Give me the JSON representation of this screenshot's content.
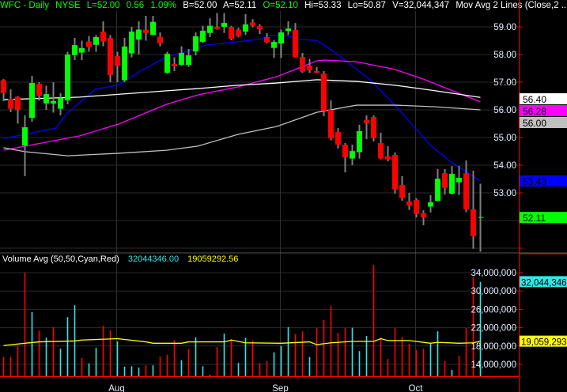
{
  "header": {
    "symbol": "WFC - Daily",
    "exchange": "NYSE",
    "last": "L=52.00",
    "change": "0.56",
    "change_pct": "1.09%",
    "bid": "B=52.00",
    "ask": "A=52.11",
    "open": "O=52.10",
    "high": "Hi=53.33",
    "low": "Lo=50.87",
    "volume": "V=32,044,347",
    "study": "Mov Avg 2 Lines (Close,2 ..."
  },
  "volume_panel": {
    "title": "Volume Avg (50,50,Cyan,Red)",
    "value_volume": "32044346.00",
    "value_avg": "19059292.56",
    "axis_labels": [
      "34,000,000",
      "30,000,000",
      "26,000,000",
      "22,000,000",
      "18,000,000",
      "14,000,000"
    ],
    "axis_values": [
      34,
      30,
      26,
      22,
      18,
      14
    ],
    "tag_volume": "32,044,346",
    "tag_avg": "19,059,293"
  },
  "price_axis": {
    "labels": [
      "59.00",
      "58.00",
      "57.00",
      "56.00",
      "55.00",
      "54.00",
      "53.00"
    ],
    "values": [
      59,
      58,
      57,
      56,
      55,
      54,
      53
    ],
    "tags": [
      {
        "text": "56.40",
        "value": 56.4,
        "bg": "#ffffff",
        "fg": "#000000"
      },
      {
        "text": "56.28",
        "value": 56.28,
        "bg": "#ff00ff",
        "fg": "#000000"
      },
      {
        "text": "56.00",
        "value": 56.0,
        "bg": "#c0c0c0",
        "fg": "#000000"
      },
      {
        "text": "53.43",
        "value": 53.43,
        "bg": "#0000ff",
        "fg": "#000000"
      },
      {
        "text": "52.11",
        "value": 52.11,
        "bg": "#00ff00",
        "fg": "#000000"
      }
    ]
  },
  "time_axis": {
    "labels": [
      {
        "text": "Aug",
        "index": 16
      },
      {
        "text": "Sep",
        "index": 39
      },
      {
        "text": "Oct",
        "index": 58
      }
    ]
  },
  "colors": {
    "up": "#00ff00",
    "down": "#ff0000",
    "wick": "#808080",
    "ma_blue": "#0000ff",
    "ma_magenta": "#ff00ff",
    "ma_white": "#ffffff",
    "ma_gray": "#c0c0c0",
    "vol_up": "#33e6e6",
    "vol_down": "#ff0000",
    "vol_avg": "#ffff00",
    "axis": "#ff0000"
  },
  "chart_data": {
    "type": "candlestick",
    "ohlc": [
      [
        57.07,
        57.11,
        56.31,
        56.61
      ],
      [
        56.4,
        56.74,
        55.92,
        56.04
      ],
      [
        56.47,
        56.5,
        55.5,
        56.0
      ],
      [
        54.71,
        55.8,
        53.6,
        55.37
      ],
      [
        55.71,
        57.23,
        55.57,
        56.97
      ],
      [
        56.94,
        57.0,
        56.33,
        56.51
      ],
      [
        56.23,
        56.87,
        56.0,
        56.57
      ],
      [
        56.23,
        57.0,
        55.9,
        56.32
      ],
      [
        56.04,
        56.6,
        55.8,
        56.43
      ],
      [
        56.35,
        58.1,
        56.2,
        58.0
      ],
      [
        57.98,
        58.6,
        57.8,
        58.34
      ],
      [
        58.07,
        58.5,
        57.8,
        58.23
      ],
      [
        58.47,
        58.67,
        58.1,
        58.27
      ],
      [
        58.35,
        58.7,
        58.1,
        58.63
      ],
      [
        58.83,
        59.2,
        58.3,
        58.47
      ],
      [
        58.6,
        58.7,
        57.0,
        57.26
      ],
      [
        57.94,
        58.1,
        57.0,
        57.6
      ],
      [
        57.07,
        58.6,
        57.0,
        58.29
      ],
      [
        58.04,
        59.0,
        57.9,
        58.83
      ],
      [
        58.54,
        59.2,
        58.0,
        58.9
      ],
      [
        58.9,
        59.4,
        58.5,
        58.78
      ],
      [
        58.71,
        59.4,
        58.7,
        59.18
      ],
      [
        58.64,
        58.8,
        58.3,
        58.4
      ],
      [
        57.34,
        58.1,
        57.3,
        58.03
      ],
      [
        57.66,
        57.9,
        57.4,
        57.58
      ],
      [
        57.63,
        58.3,
        57.6,
        58.06
      ],
      [
        57.63,
        58.2,
        57.55,
        57.97
      ],
      [
        58.11,
        58.8,
        57.97,
        58.66
      ],
      [
        58.46,
        59.04,
        58.42,
        58.86
      ],
      [
        58.78,
        59.31,
        58.63,
        59.04
      ],
      [
        59.0,
        59.5,
        58.9,
        58.92
      ],
      [
        59.0,
        59.5,
        58.78,
        59.14
      ],
      [
        59.0,
        59.04,
        58.52,
        58.57
      ],
      [
        58.9,
        58.97,
        58.62,
        58.66
      ],
      [
        58.83,
        59.46,
        58.71,
        59.09
      ],
      [
        59.16,
        59.28,
        58.98,
        59.04
      ],
      [
        59.03,
        59.1,
        58.74,
        58.92
      ],
      [
        58.63,
        58.77,
        58.4,
        58.44
      ],
      [
        58.24,
        58.53,
        57.88,
        58.46
      ],
      [
        58.4,
        58.9,
        57.88,
        58.8
      ],
      [
        58.85,
        59.2,
        58.7,
        58.94
      ],
      [
        58.89,
        59.14,
        57.89,
        57.9
      ],
      [
        57.91,
        58.06,
        57.34,
        57.38
      ],
      [
        57.6,
        57.84,
        57.33,
        57.43
      ],
      [
        57.4,
        57.55,
        57.33,
        57.35
      ],
      [
        57.31,
        57.4,
        55.77,
        55.97
      ],
      [
        56.0,
        56.34,
        54.9,
        54.97
      ],
      [
        55.2,
        55.34,
        54.6,
        54.74
      ],
      [
        54.74,
        54.8,
        53.74,
        54.29
      ],
      [
        54.24,
        54.74,
        54.0,
        54.51
      ],
      [
        54.47,
        55.46,
        54.24,
        55.23
      ],
      [
        55.64,
        55.8,
        54.94,
        55.52
      ],
      [
        55.74,
        55.8,
        54.86,
        54.97
      ],
      [
        54.8,
        55.17,
        54.21,
        54.24
      ],
      [
        54.32,
        54.69,
        54.14,
        54.21
      ],
      [
        54.37,
        54.46,
        52.97,
        53.14
      ],
      [
        53.29,
        53.6,
        52.71,
        52.81
      ],
      [
        52.69,
        53.0,
        52.38,
        52.54
      ],
      [
        52.74,
        52.8,
        52.11,
        52.24
      ],
      [
        52.26,
        52.37,
        51.83,
        52.11
      ],
      [
        52.5,
        52.92,
        52.29,
        52.66
      ],
      [
        52.71,
        53.86,
        52.69,
        53.51
      ],
      [
        53.71,
        53.86,
        52.94,
        53.18
      ],
      [
        52.97,
        53.97,
        52.94,
        53.69
      ],
      [
        53.38,
        53.97,
        52.92,
        53.54
      ],
      [
        53.71,
        54.17,
        52.3,
        52.4
      ],
      [
        52.4,
        53.8,
        50.98,
        51.43
      ],
      [
        52.1,
        53.33,
        50.87,
        52.11
      ]
    ],
    "moving_averages": [
      {
        "name": "blue",
        "points": [
          [
            0,
            54.97
          ],
          [
            3,
            55.11
          ],
          [
            7.3,
            55.34
          ],
          [
            9,
            55.9
          ],
          [
            12.9,
            56.74
          ],
          [
            16.2,
            56.91
          ],
          [
            19.6,
            57.46
          ],
          [
            22.9,
            57.91
          ],
          [
            25.1,
            58.06
          ],
          [
            28.4,
            58.34
          ],
          [
            32.9,
            58.46
          ],
          [
            36.2,
            58.56
          ],
          [
            37.3,
            58.69
          ],
          [
            39.6,
            58.69
          ],
          [
            41.8,
            58.54
          ],
          [
            44,
            58.51
          ],
          [
            45.1,
            58.34
          ],
          [
            48,
            57.8
          ],
          [
            51.4,
            57.11
          ],
          [
            55,
            56.17
          ],
          [
            59.9,
            54.74
          ],
          [
            62.6,
            54.17
          ],
          [
            67,
            53.43
          ]
        ]
      },
      {
        "name": "magenta",
        "points": [
          [
            0,
            54.54
          ],
          [
            10.7,
            55.06
          ],
          [
            16.2,
            55.49
          ],
          [
            22.9,
            56.2
          ],
          [
            27.3,
            56.54
          ],
          [
            32.9,
            56.83
          ],
          [
            38.4,
            57.2
          ],
          [
            44,
            57.77
          ],
          [
            45.1,
            57.8
          ],
          [
            49.6,
            57.74
          ],
          [
            55,
            57.46
          ],
          [
            59,
            57.11
          ],
          [
            67,
            56.29
          ]
        ]
      },
      {
        "name": "white",
        "points": [
          [
            0,
            56.37
          ],
          [
            10.7,
            56.46
          ],
          [
            22.9,
            56.69
          ],
          [
            27.3,
            56.77
          ],
          [
            32.9,
            56.89
          ],
          [
            38.4,
            56.97
          ],
          [
            44,
            57.09
          ],
          [
            49.6,
            57.03
          ],
          [
            55,
            56.89
          ],
          [
            60.7,
            56.69
          ],
          [
            67,
            56.45
          ]
        ]
      },
      {
        "name": "gray",
        "points": [
          [
            0,
            54.63
          ],
          [
            3,
            54.49
          ],
          [
            9,
            54.34
          ],
          [
            16.2,
            54.43
          ],
          [
            22.9,
            54.54
          ],
          [
            27.3,
            54.69
          ],
          [
            32.9,
            55.11
          ],
          [
            38.4,
            55.4
          ],
          [
            44,
            55.91
          ],
          [
            49.6,
            56.17
          ],
          [
            55,
            56.17
          ],
          [
            60.7,
            56.11
          ],
          [
            67,
            56.0
          ]
        ]
      }
    ],
    "volume_millions": [
      15.6,
      15.6,
      18.1,
      34.0,
      25.4,
      21.4,
      19.8,
      22.1,
      17.4,
      24.3,
      26.9,
      15.4,
      14.2,
      17.6,
      22.4,
      21.4,
      19.0,
      13.5,
      13.6,
      13.3,
      13.8,
      13.8,
      15.7,
      16.1,
      19.3,
      14.9,
      17.3,
      19.9,
      13.6,
      11.6,
      17.8,
      20.7,
      19.5,
      14.3,
      19.8,
      19.2,
      14.3,
      14.7,
      16.6,
      18.0,
      22.1,
      20.6,
      21.2,
      15.6,
      21.9,
      23.7,
      26.8,
      20.9,
      21.9,
      22.0,
      16.9,
      20.2,
      35.7,
      19.8,
      15.2,
      21.9,
      20.0,
      18.5,
      17.1,
      17.4,
      18.5,
      21.2,
      14.7,
      12.8,
      15.9,
      21.9,
      33.0,
      32.0
    ],
    "volume_up": [
      0,
      0,
      0,
      0,
      1,
      0,
      1,
      0,
      1,
      1,
      1,
      0,
      1,
      1,
      0,
      0,
      1,
      1,
      1,
      1,
      0,
      1,
      0,
      0,
      0,
      1,
      0,
      1,
      1,
      1,
      0,
      1,
      0,
      1,
      1,
      0,
      0,
      0,
      1,
      1,
      1,
      0,
      0,
      1,
      0,
      0,
      0,
      0,
      0,
      1,
      1,
      1,
      0,
      0,
      0,
      0,
      0,
      0,
      0,
      0,
      1,
      1,
      0,
      1,
      0,
      0,
      0,
      1
    ],
    "volume_avg_millions": [
      [
        0,
        18.1
      ],
      [
        3,
        18.6
      ],
      [
        5,
        18.9
      ],
      [
        10,
        19.1
      ],
      [
        11,
        19.3
      ],
      [
        16,
        19.6
      ],
      [
        20,
        18.9
      ],
      [
        21,
        18.6
      ],
      [
        25,
        18.6
      ],
      [
        26,
        18.9
      ],
      [
        31,
        18.9
      ],
      [
        32,
        19.3
      ],
      [
        34,
        18.7
      ],
      [
        39,
        18.6
      ],
      [
        43,
        18.9
      ],
      [
        44,
        18.3
      ],
      [
        46,
        18.7
      ],
      [
        49,
        19.0
      ],
      [
        52,
        19.0
      ],
      [
        53,
        19.6
      ],
      [
        54,
        19.2
      ],
      [
        57,
        19.2
      ],
      [
        60,
        18.6
      ],
      [
        61,
        18.8
      ],
      [
        64,
        18.6
      ],
      [
        66,
        18.7
      ],
      [
        67,
        19.06
      ]
    ],
    "price_range": [
      50.7,
      59.7
    ],
    "volume_range": [
      11.4,
      37
    ]
  }
}
